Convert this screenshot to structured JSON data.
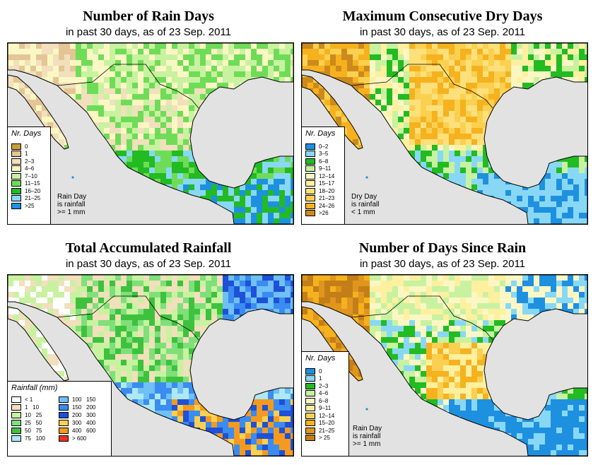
{
  "panels": [
    {
      "title": "Number of Rain Days",
      "subtitle": "in past 30 days, as of  23 Sep. 2011",
      "legend_title": "Nr. Days",
      "legend_items": [
        {
          "label": "0",
          "color": "#c99e3c"
        },
        {
          "label": "1",
          "color": "#e3c596"
        },
        {
          "label": "2–3",
          "color": "#f2dfbc"
        },
        {
          "label": "4–6",
          "color": "#fbf7c4"
        },
        {
          "label": "7–10",
          "color": "#c8f2a0"
        },
        {
          "label": "11–15",
          "color": "#6fdc57"
        },
        {
          "label": "16–20",
          "color": "#22bb22"
        },
        {
          "label": "21–25",
          "color": "#88d8f5"
        },
        {
          "label": ">25",
          "color": "#1e90e0"
        }
      ],
      "note": [
        "Rain Day",
        "is rainfall",
        ">= 1 mm"
      ]
    },
    {
      "title": "Maximum Consecutive Dry Days",
      "subtitle": "in past 30 days, as of  23 Sep. 2011",
      "legend_title": "Nr. Days",
      "legend_items": [
        {
          "label": "0–2",
          "color": "#1e90e0"
        },
        {
          "label": "3–5",
          "color": "#88d8f5"
        },
        {
          "label": "6–8",
          "color": "#22bb22"
        },
        {
          "label": "9–11",
          "color": "#c8f2a0"
        },
        {
          "label": "12–14",
          "color": "#fbf7c4"
        },
        {
          "label": "15–17",
          "color": "#fff0a0"
        },
        {
          "label": "18–20",
          "color": "#fde07a"
        },
        {
          "label": "21–23",
          "color": "#fbd050"
        },
        {
          "label": "24–26",
          "color": "#f5b21e"
        },
        {
          "label": ">26",
          "color": "#cd8a1c"
        }
      ],
      "note": [
        "Dry Day",
        "is rainfall",
        "< 1 mm"
      ]
    },
    {
      "title": "Total Accumulated Rainfall",
      "subtitle": "in past 30 days, as of  23 Sep. 2011",
      "legend_title": "Rainfall (mm)",
      "legend_left": [
        {
          "label": "< 1",
          "color": "#ffffff"
        },
        {
          "label": "1   10",
          "color": "#f2dfbc"
        },
        {
          "label": "10   25",
          "color": "#c8f2a0"
        },
        {
          "label": "25   50",
          "color": "#7fe07a"
        },
        {
          "label": "50   75",
          "color": "#3ec23e"
        },
        {
          "label": "75   100",
          "color": "#aee8f5"
        }
      ],
      "legend_right": [
        {
          "label": "100   150",
          "color": "#6ec0f5"
        },
        {
          "label": "150   200",
          "color": "#3a8cf0"
        },
        {
          "label": "200   300",
          "color": "#1e50d8"
        },
        {
          "label": "300   400",
          "color": "#fbd050"
        },
        {
          "label": "400   600",
          "color": "#f59a1e"
        },
        {
          "label": "> 600",
          "color": "#e8321e"
        }
      ]
    },
    {
      "title": "Number of Days Since Rain",
      "subtitle": "in past 30 days, as of  23 Sep. 2011",
      "legend_title": "Nr. Days",
      "legend_items": [
        {
          "label": "0",
          "color": "#1e90e0"
        },
        {
          "label": "1",
          "color": "#88d8f5"
        },
        {
          "label": "2–3",
          "color": "#22bb22"
        },
        {
          "label": "4–6",
          "color": "#c8f2a0"
        },
        {
          "label": "6–8",
          "color": "#fbf7c4"
        },
        {
          "label": "9–11",
          "color": "#fff0a0"
        },
        {
          "label": "12–14",
          "color": "#fbd050"
        },
        {
          "label": "15–20",
          "color": "#f5b21e"
        },
        {
          "label": "21–25",
          "color": "#e0961c"
        },
        {
          "label": "> 25",
          "color": "#c47e18"
        }
      ],
      "note": [
        "Rain Day",
        "is rainfall",
        ">= 1 mm"
      ]
    }
  ]
}
